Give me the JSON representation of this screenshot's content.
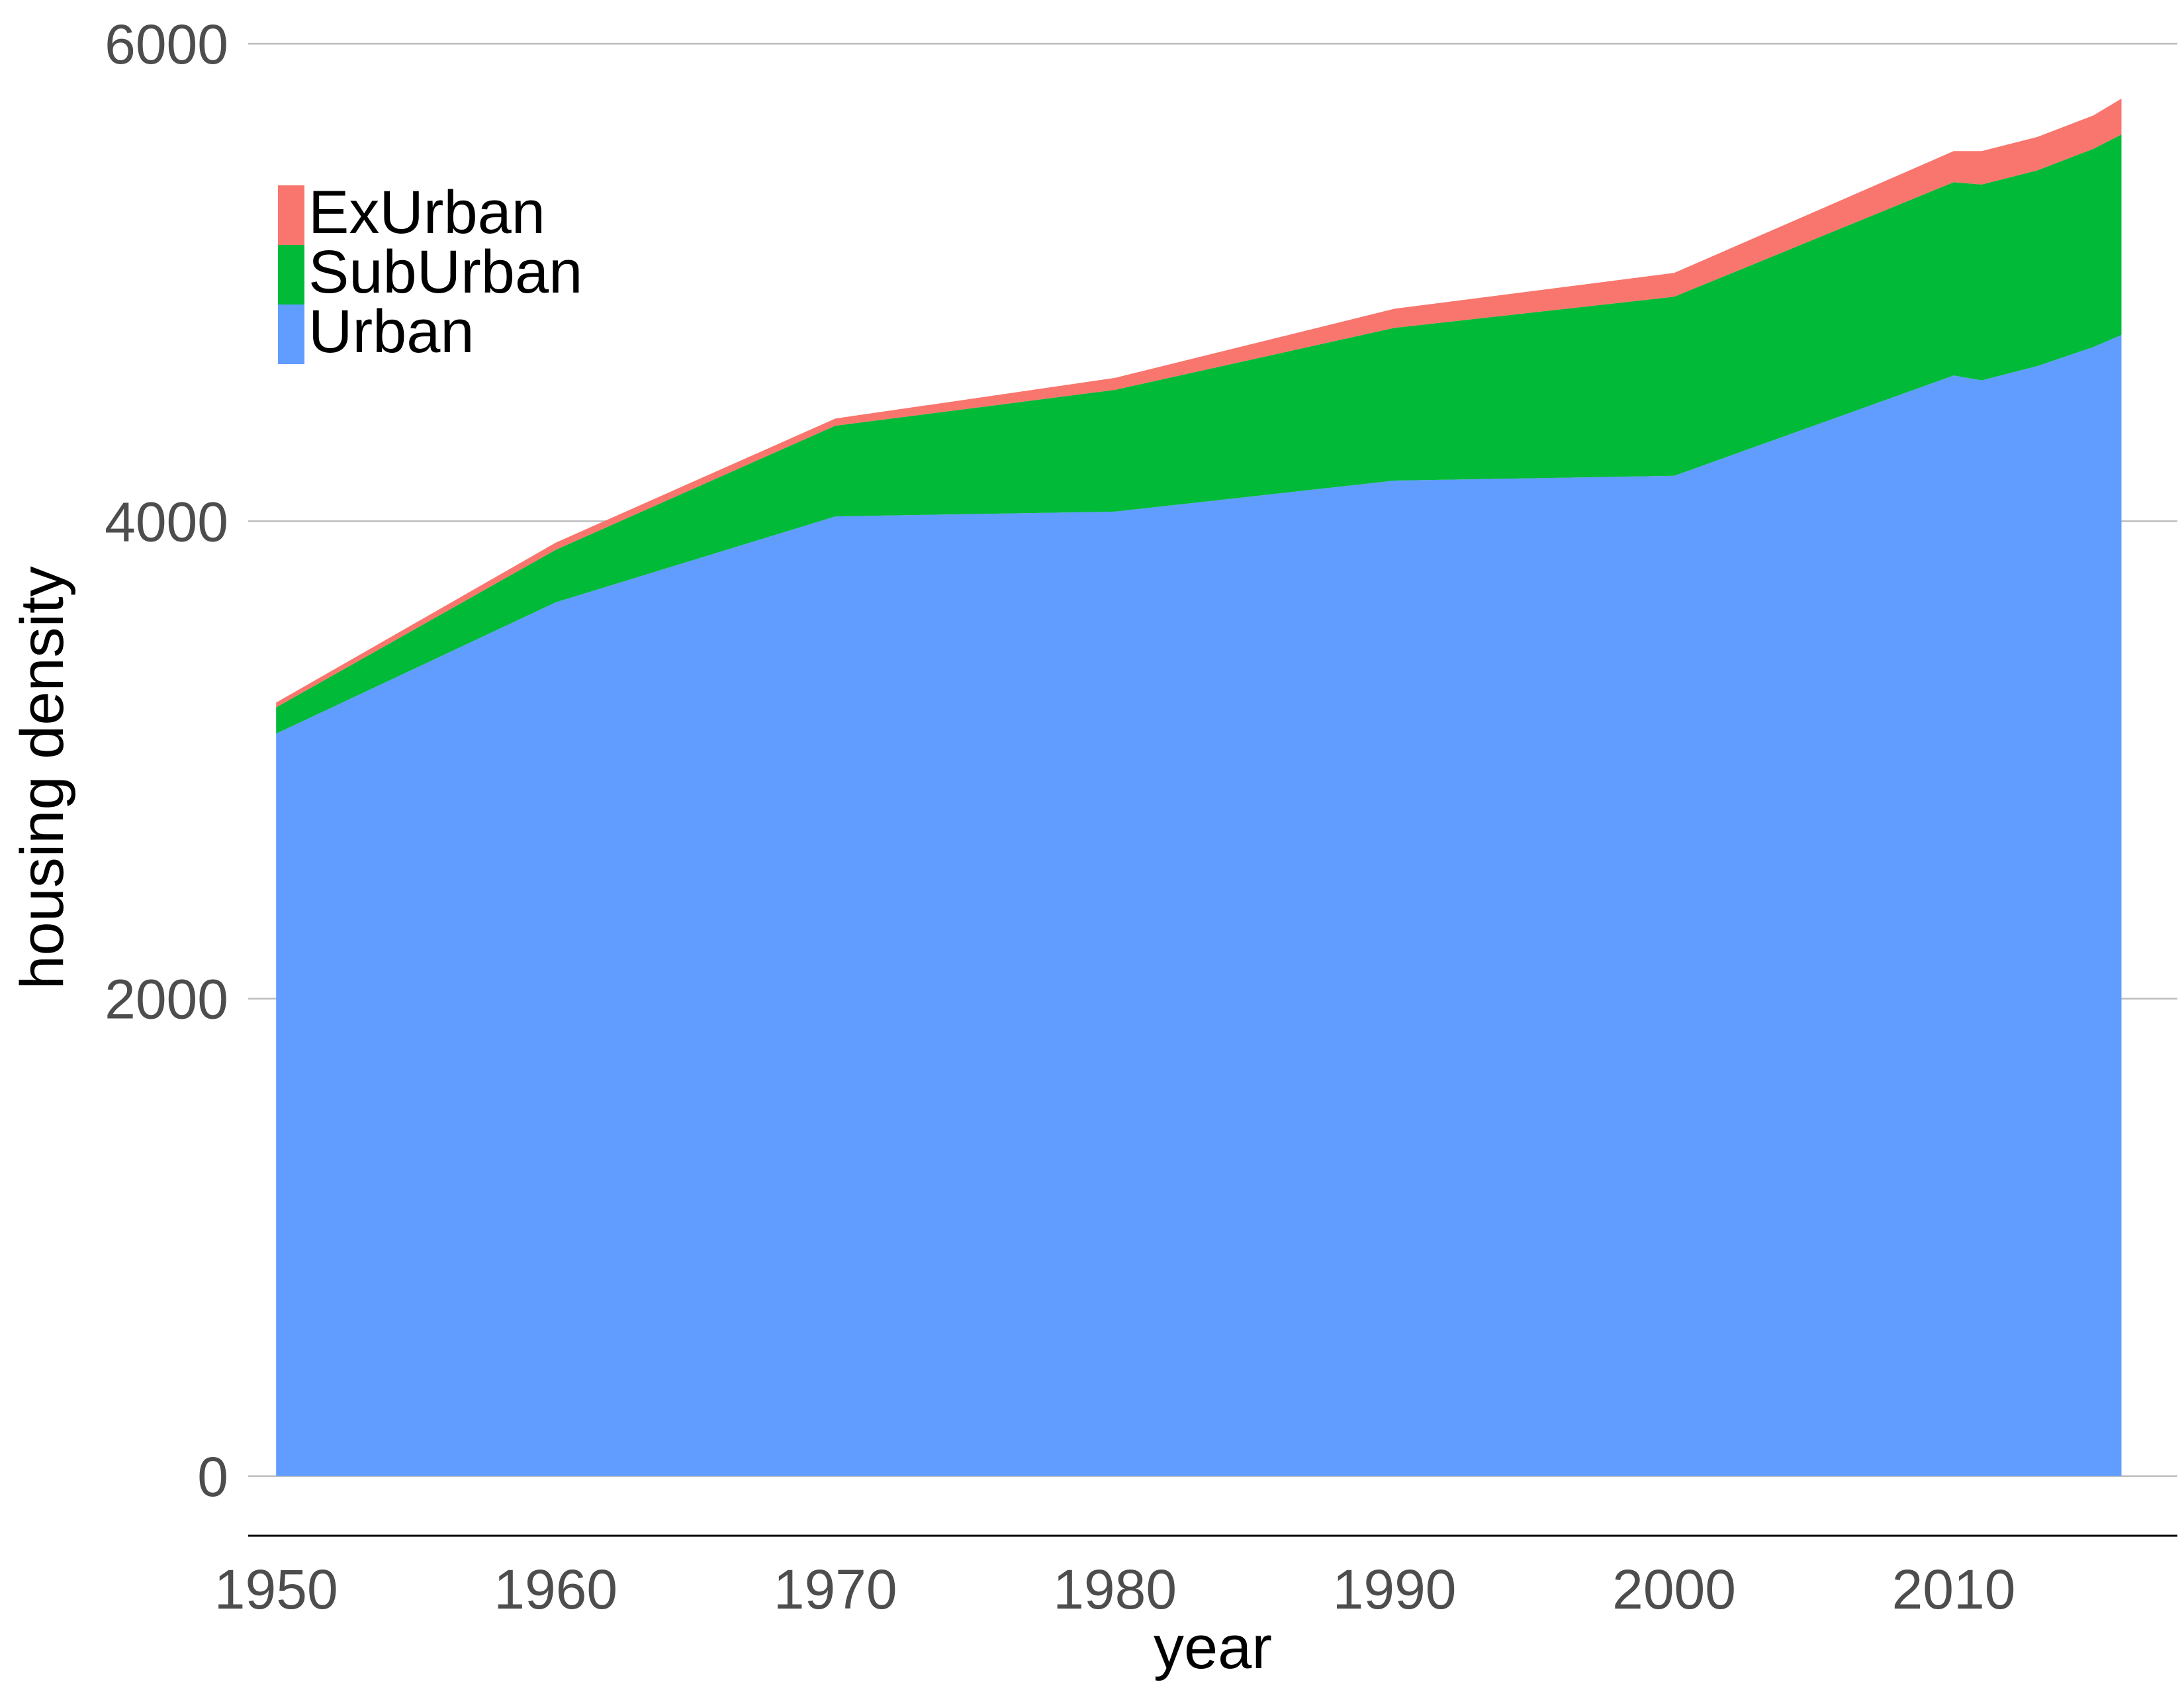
{
  "colors": {
    "Urban": "#619CFF",
    "SubUrban": "#00BA38",
    "ExUrban": "#F8766D",
    "grid": "#bdbdbd",
    "axis_line": "#000000",
    "tick_text": "#4d4d4d"
  },
  "chart_data": {
    "type": "area",
    "stacked": true,
    "title": "",
    "xlabel": "year",
    "ylabel": "housing density",
    "xlim": [
      1949,
      2018
    ],
    "ylim": [
      -250,
      6100
    ],
    "x_ticks": [
      1950,
      1960,
      1970,
      1980,
      1990,
      2000,
      2010
    ],
    "y_ticks": [
      0,
      2000,
      4000,
      6000
    ],
    "grid": "horizontal major lines",
    "legend": {
      "position": "top-left inside plot",
      "entries": [
        "ExUrban",
        "SubUrban",
        "Urban"
      ]
    },
    "x": [
      1950,
      1960,
      1970,
      1980,
      1990,
      2000,
      2010,
      2011,
      2013,
      2015,
      2016
    ],
    "series": [
      {
        "name": "Urban",
        "values": [
          3110,
          3660,
          4020,
          4040,
          4170,
          4190,
          4610,
          4590,
          4650,
          4730,
          4780
        ]
      },
      {
        "name": "SubUrban",
        "values": [
          110,
          220,
          380,
          510,
          640,
          750,
          810,
          820,
          820,
          830,
          840
        ]
      },
      {
        "name": "ExUrban",
        "values": [
          20,
          30,
          30,
          50,
          80,
          100,
          130,
          140,
          140,
          140,
          150
        ]
      }
    ]
  }
}
